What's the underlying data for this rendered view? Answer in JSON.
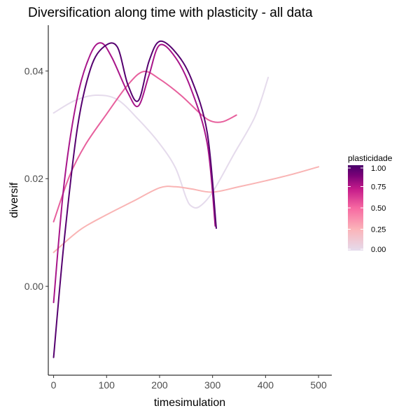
{
  "chart_data": {
    "type": "line",
    "title": "Diversification along time with plasticity - all data",
    "xlabel": "timesimulation",
    "ylabel": "diversif",
    "xlim": [
      -10,
      525
    ],
    "ylim": [
      -0.0165,
      0.0485
    ],
    "x_ticks": [
      0,
      100,
      200,
      300,
      400,
      500
    ],
    "x_tick_labels": [
      "0",
      "100",
      "200",
      "300",
      "400",
      "500"
    ],
    "y_ticks": [
      0.0,
      0.02,
      0.04
    ],
    "y_tick_labels": [
      "0.00",
      "0.02",
      "0.04"
    ],
    "grid": false,
    "legend": {
      "title": "plasticidade",
      "placement": "right",
      "labels": [
        "1.00",
        "0.75",
        "0.50",
        "0.25",
        "0.00"
      ],
      "label_values": [
        1.0,
        0.75,
        0.5,
        0.25,
        0.0
      ],
      "gradient_colors": [
        "#e5dbec",
        "#fbb4b9",
        "#f768a1",
        "#c51b8a",
        "#7a0177",
        "#49006a"
      ]
    },
    "series": [
      {
        "plasticity": 0.0,
        "color": "#e5dbec",
        "x": [
          0,
          40,
          80,
          120,
          160,
          200,
          230,
          250,
          260,
          275,
          300,
          340,
          380,
          405
        ],
        "y": [
          0.0322,
          0.0345,
          0.0355,
          0.0347,
          0.031,
          0.0265,
          0.022,
          0.0165,
          0.0149,
          0.0148,
          0.0175,
          0.0245,
          0.0315,
          0.0388
        ]
      },
      {
        "plasticity": 0.25,
        "color": "#f9b4b4",
        "x": [
          0,
          50,
          100,
          150,
          200,
          230,
          260,
          300,
          350,
          400,
          450,
          500
        ],
        "y": [
          0.0063,
          0.0105,
          0.0133,
          0.0158,
          0.0183,
          0.0185,
          0.0181,
          0.0175,
          0.0185,
          0.0196,
          0.0208,
          0.0222
        ]
      },
      {
        "plasticity": 0.6,
        "color": "#e7609d",
        "x": [
          0,
          30,
          60,
          100,
          140,
          170,
          200,
          240,
          280,
          300,
          320,
          345
        ],
        "y": [
          0.012,
          0.0205,
          0.0263,
          0.032,
          0.0374,
          0.0399,
          0.0385,
          0.0355,
          0.0318,
          0.0306,
          0.0306,
          0.0318
        ]
      },
      {
        "plasticity": 0.8,
        "color": "#a8158a",
        "x": [
          0,
          20,
          45,
          70,
          90,
          110,
          140,
          160,
          180,
          200,
          230,
          260,
          290,
          305
        ],
        "y": [
          -0.003,
          0.0192,
          0.0352,
          0.0432,
          0.0452,
          0.0425,
          0.036,
          0.0335,
          0.0392,
          0.0448,
          0.0425,
          0.0365,
          0.0265,
          0.0112
        ]
      },
      {
        "plasticity": 1.0,
        "color": "#55006f",
        "x": [
          0,
          20,
          45,
          70,
          95,
          120,
          140,
          160,
          180,
          200,
          230,
          260,
          290,
          307
        ],
        "y": [
          -0.0132,
          0.0085,
          0.0295,
          0.0405,
          0.0445,
          0.0445,
          0.0375,
          0.0345,
          0.0418,
          0.0455,
          0.0435,
          0.0385,
          0.0285,
          0.0108
        ]
      }
    ]
  }
}
